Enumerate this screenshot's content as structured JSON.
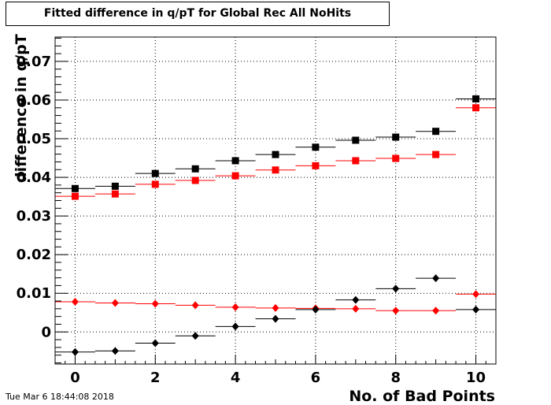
{
  "chart_data": {
    "type": "scatter",
    "title": "Fitted difference in q/pT for Global Rec All NoHits",
    "xlabel": "No. of Bad Points",
    "ylabel": "difference in q/pT",
    "xlim": [
      -0.5,
      10.5
    ],
    "ylim": [
      -0.0083,
      0.0763
    ],
    "grid": true,
    "x_ticks": [
      0,
      2,
      4,
      6,
      8,
      10
    ],
    "x_tick_labels": [
      "0",
      "2",
      "4",
      "6",
      "8",
      "10"
    ],
    "y_ticks": [
      0,
      0.01,
      0.02,
      0.03,
      0.04,
      0.05,
      0.06,
      0.07
    ],
    "y_tick_labels": [
      "0",
      "0.01",
      "0.02",
      "0.03",
      "0.04",
      "0.05",
      "0.06",
      "0.07"
    ],
    "x": [
      0,
      1,
      2,
      3,
      4,
      5,
      6,
      7,
      8,
      9,
      10
    ],
    "x_error": 0.5,
    "series": [
      {
        "color": "#000000",
        "marker": "square",
        "values": [
          0.0371,
          0.0377,
          0.041,
          0.0422,
          0.0443,
          0.0459,
          0.0478,
          0.0496,
          0.0504,
          0.0519,
          0.0603
        ]
      },
      {
        "color": "#ff0000",
        "marker": "square",
        "values": [
          0.0351,
          0.0357,
          0.0382,
          0.0392,
          0.0404,
          0.0419,
          0.043,
          0.0443,
          0.0449,
          0.0459,
          0.058
        ]
      },
      {
        "color": "#ff0000",
        "marker": "diamond",
        "values": [
          0.0078,
          0.0075,
          0.0073,
          0.0069,
          0.0064,
          0.0062,
          0.0061,
          0.006,
          0.0055,
          0.0055,
          0.0098
        ]
      },
      {
        "color": "#000000",
        "marker": "diamond",
        "values": [
          -0.0052,
          -0.0049,
          -0.0029,
          -0.001,
          0.0014,
          0.0034,
          0.0058,
          0.0083,
          0.0112,
          0.0139,
          0.0058
        ]
      }
    ]
  },
  "footer": {
    "timestamp": "Tue Mar  6 18:44:08 2018"
  }
}
